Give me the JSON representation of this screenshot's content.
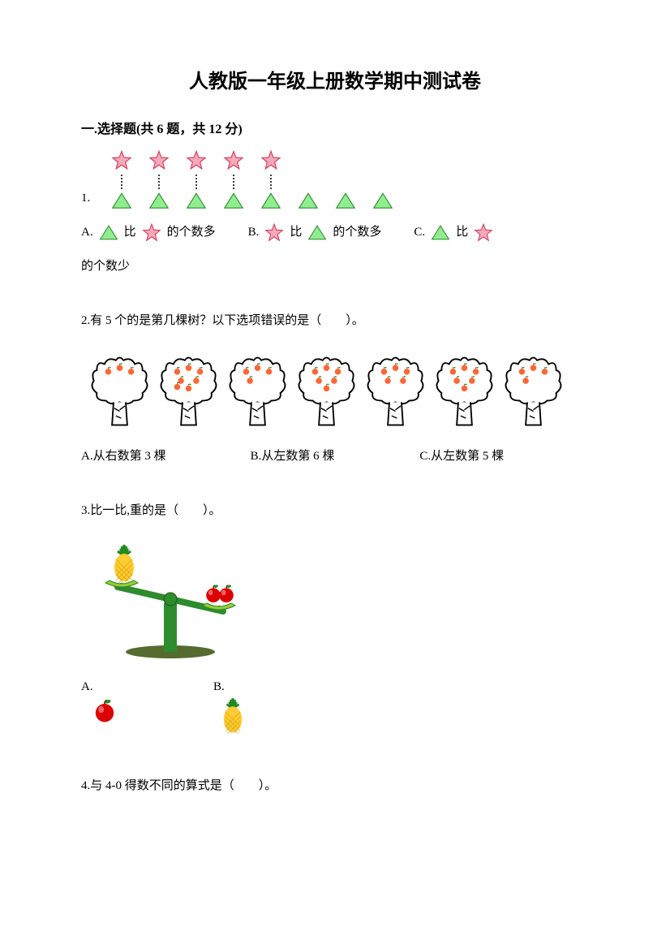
{
  "title": "人教版一年级上册数学期中测试卷",
  "section1": {
    "header": "一.选择题(共 6 题，共 12 分)",
    "q1": {
      "num": "1.",
      "stars_count": 5,
      "triangles_count": 8,
      "colors": {
        "star_fill": "#f8a8b8",
        "star_stroke": "#d04060",
        "triangle_fill": "#90ee90",
        "triangle_stroke": "#2e8b2e"
      },
      "optA_prefix": "A.",
      "optA_mid": "比",
      "optA_suffix": "的个数多",
      "optB_prefix": "B.",
      "optB_mid": "比",
      "optB_suffix": "的个数多",
      "optC_prefix": "C.",
      "optC_mid": "比",
      "optC_cont": "的个数少"
    },
    "q2": {
      "text": "2.有 5 个的是第几棵树？以下选项错误的是（　　）。",
      "trees": [
        {
          "apples": 3
        },
        {
          "apples": 7
        },
        {
          "apples": 4
        },
        {
          "apples": 6
        },
        {
          "apples": 5
        },
        {
          "apples": 6
        },
        {
          "apples": 4
        }
      ],
      "colors": {
        "apple_fill": "#ff6633",
        "apple_stroke": "#cc3300",
        "leaf": "#228b22",
        "trunk_stroke": "#000000"
      },
      "optA": "A.从右数第 3 棵",
      "optB": "B.从左数第 6 棵",
      "optC": "C.从左数第 5 棵"
    },
    "q3": {
      "text": "3.比一比,重的是（　　）。",
      "colors": {
        "pineapple_body": "#ffcc33",
        "pineapple_leaf": "#228b22",
        "apple_fill": "#dd0000",
        "apple_leaf": "#228b22",
        "scale_green": "#2e8b2e",
        "scale_base": "#556b2f",
        "pan_color": "#9acd32"
      },
      "optA": "A.",
      "optB": "B."
    },
    "q4": {
      "text": "4.与 4-0 得数不同的算式是（　　）。"
    }
  }
}
